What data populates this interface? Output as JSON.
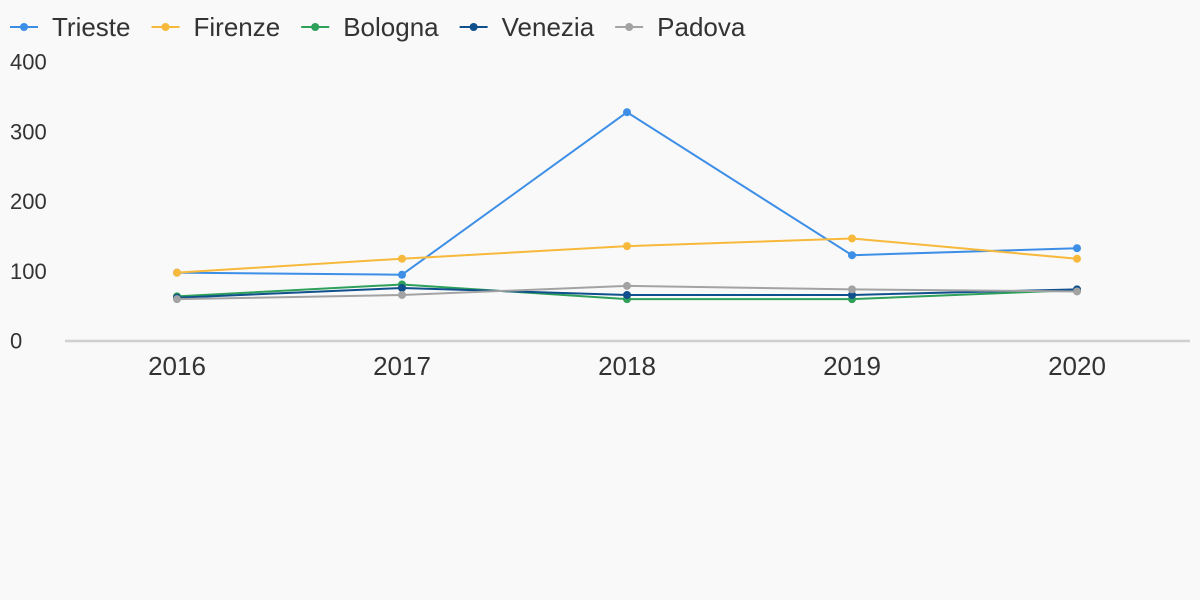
{
  "chart_data": {
    "type": "line",
    "categories": [
      "2016",
      "2017",
      "2018",
      "2019",
      "2020"
    ],
    "ylim": [
      0,
      400
    ],
    "yticks": [
      0,
      100,
      200,
      300,
      400
    ],
    "ytick_labels": [
      "0",
      "100",
      "200",
      "300",
      "400"
    ],
    "grid": false,
    "legend_position": "top-left",
    "title": "",
    "xlabel": "",
    "ylabel": "",
    "series": [
      {
        "name": "Trieste",
        "color": "#3c8ee6",
        "values": [
          98,
          95,
          328,
          123,
          133
        ]
      },
      {
        "name": "Firenze",
        "color": "#f7b93b",
        "values": [
          98,
          118,
          136,
          147,
          118
        ]
      },
      {
        "name": "Bologna",
        "color": "#2ea05a",
        "values": [
          64,
          81,
          60,
          60,
          73
        ]
      },
      {
        "name": "Venezia",
        "color": "#10508c",
        "values": [
          62,
          76,
          66,
          66,
          74
        ]
      },
      {
        "name": "Padova",
        "color": "#a3a3a3",
        "values": [
          60,
          66,
          79,
          74,
          71
        ]
      }
    ]
  }
}
